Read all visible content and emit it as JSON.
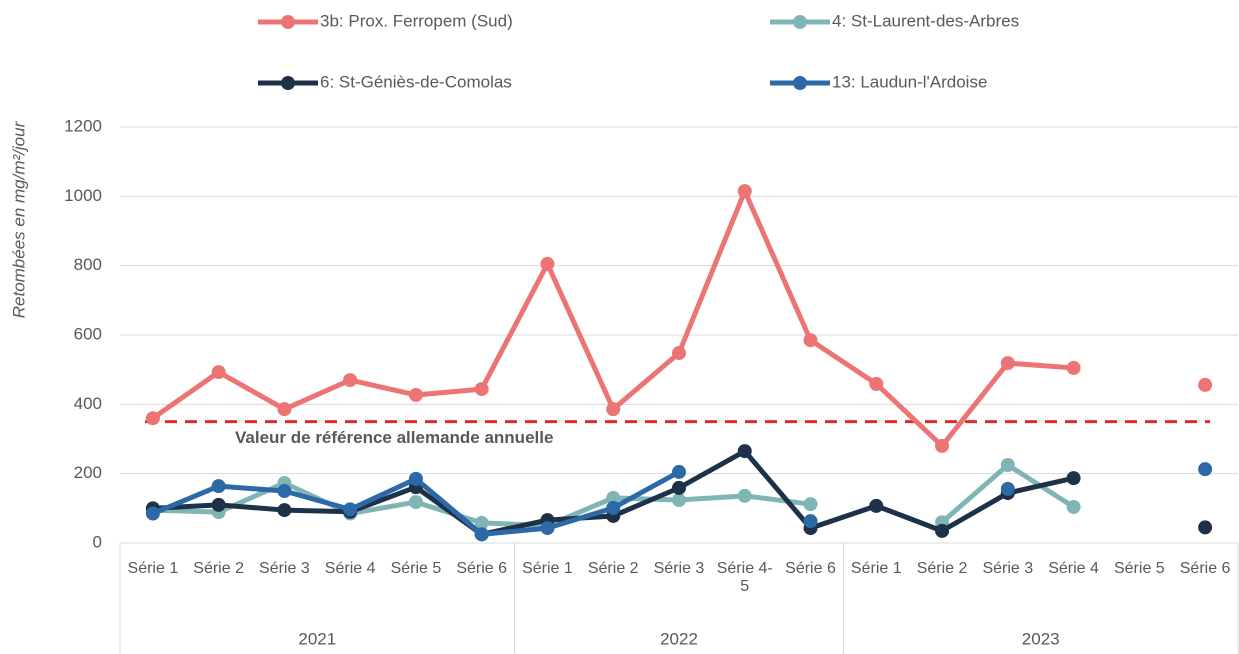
{
  "chart_data": {
    "type": "line",
    "y_label": "Retombées en mg/m²/jour",
    "groups": [
      {
        "name": "2021",
        "categories": [
          "Série 1",
          "Série 2",
          "Série 3",
          "Série 4",
          "Série 5",
          "Série 6"
        ]
      },
      {
        "name": "2022",
        "categories": [
          "Série 1",
          "Série 2",
          "Série 3",
          "Série 4-5",
          "Série 6"
        ]
      },
      {
        "name": "2023",
        "categories": [
          "Série 1",
          "Série 2",
          "Série 3",
          "Série 4",
          "Série 5",
          "Série 6"
        ]
      }
    ],
    "series": [
      {
        "name": "3b: Prox. Ferropem (Sud)",
        "color": "#ec7474",
        "values": [
          360,
          493,
          386,
          470,
          427,
          444,
          805,
          386,
          548,
          1015,
          585,
          459,
          280,
          519,
          505,
          null,
          456
        ]
      },
      {
        "name": "4: St-Laurent-des-Arbres",
        "color": "#80b5b6",
        "values": [
          95,
          89,
          173,
          85,
          118,
          58,
          50,
          130,
          124,
          136,
          112,
          null,
          60,
          225,
          104,
          null,
          null
        ]
      },
      {
        "name": "6: St-Géniès-de-Comolas",
        "color": "#1d3248",
        "values": [
          100,
          110,
          95,
          90,
          161,
          25,
          66,
          78,
          159,
          265,
          43,
          107,
          35,
          144,
          187,
          null,
          45
        ]
      },
      {
        "name": "13: Laudun-l'Ardoise",
        "color": "#2d69a6",
        "values": [
          85,
          164,
          150,
          97,
          185,
          25,
          43,
          101,
          205,
          null,
          63,
          null,
          null,
          156,
          null,
          null,
          213
        ]
      }
    ],
    "reference": {
      "value": 350,
      "label": "Valeur de référence allemande annuelle",
      "color": "#e02b2b"
    },
    "ylim": [
      0,
      1200
    ],
    "yticks": [
      0,
      200,
      400,
      600,
      800,
      1000,
      1200
    ],
    "grid": true
  }
}
